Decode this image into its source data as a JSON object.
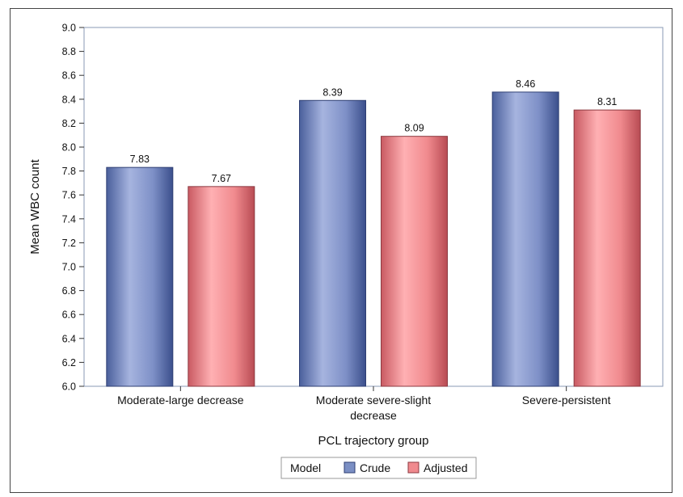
{
  "chart_data": {
    "type": "bar",
    "title": "",
    "xlabel": "PCL trajectory group",
    "ylabel": "Mean WBC count",
    "categories": [
      [
        "Moderate-large decrease"
      ],
      [
        "Moderate severe-slight",
        "decrease"
      ],
      [
        "Severe-persistent"
      ]
    ],
    "series": [
      {
        "name": "Crude",
        "values": [
          7.83,
          8.39,
          8.46
        ],
        "labels": [
          "7.83",
          "8.39",
          "8.46"
        ],
        "color": "#7b8fc4"
      },
      {
        "name": "Adjusted",
        "values": [
          7.67,
          8.09,
          8.31
        ],
        "labels": [
          "7.67",
          "8.09",
          "8.31"
        ],
        "color": "#f08a8e"
      }
    ],
    "ylim": [
      6.0,
      9.0
    ],
    "yticks": [
      "6.0",
      "6.2",
      "6.4",
      "6.6",
      "6.8",
      "7.0",
      "7.2",
      "7.4",
      "7.6",
      "7.8",
      "8.0",
      "8.2",
      "8.4",
      "8.6",
      "8.8",
      "9.0"
    ],
    "grid": false,
    "legend": {
      "title": "Model",
      "position": "bottom-center"
    }
  }
}
